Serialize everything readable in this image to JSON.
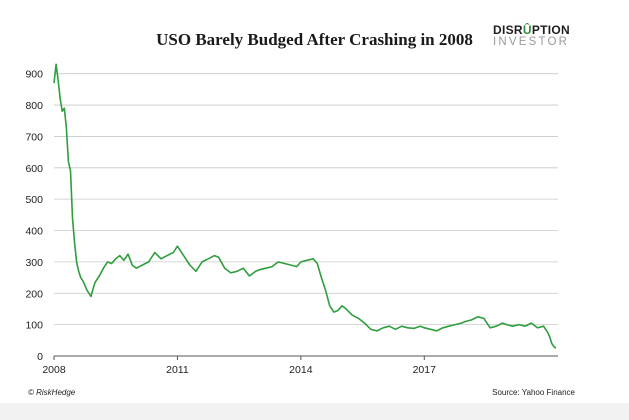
{
  "chart_data": {
    "type": "line",
    "title": "USO Barely Budged After Crashing in 2008",
    "xlabel": "",
    "ylabel": "",
    "x_tick_labels": [
      "2008",
      "2011",
      "2014",
      "2017"
    ],
    "x_ticks": [
      2008,
      2011,
      2014,
      2017
    ],
    "xlim": [
      2008,
      2020.25
    ],
    "y_ticks": [
      0,
      100,
      200,
      300,
      400,
      500,
      600,
      700,
      800,
      900
    ],
    "ylim": [
      0,
      950
    ],
    "grid": true,
    "line_color": "#2e9e3e",
    "series": [
      {
        "x": [
          2008.0,
          2008.05,
          2008.1,
          2008.15,
          2008.2,
          2008.25,
          2008.3,
          2008.35,
          2008.4,
          2008.45,
          2008.5,
          2008.55,
          2008.6,
          2008.65,
          2008.7,
          2008.75,
          2008.8,
          2008.85,
          2008.9,
          2008.95,
          2009.0,
          2009.1,
          2009.2,
          2009.3,
          2009.4,
          2009.5,
          2009.6,
          2009.7,
          2009.8,
          2009.9,
          2010.0,
          2010.15,
          2010.3,
          2010.45,
          2010.6,
          2010.75,
          2010.9,
          2011.0,
          2011.15,
          2011.3,
          2011.45,
          2011.6,
          2011.75,
          2011.9,
          2012.0,
          2012.15,
          2012.3,
          2012.45,
          2012.6,
          2012.75,
          2012.9,
          2013.0,
          2013.15,
          2013.3,
          2013.45,
          2013.6,
          2013.75,
          2013.9,
          2014.0,
          2014.15,
          2014.3,
          2014.4,
          2014.5,
          2014.6,
          2014.7,
          2014.8,
          2014.9,
          2015.0,
          2015.1,
          2015.25,
          2015.4,
          2015.55,
          2015.7,
          2015.85,
          2016.0,
          2016.15,
          2016.3,
          2016.45,
          2016.6,
          2016.75,
          2016.9,
          2017.0,
          2017.15,
          2017.3,
          2017.45,
          2017.6,
          2017.75,
          2017.9,
          2018.0,
          2018.15,
          2018.3,
          2018.45,
          2018.6,
          2018.75,
          2018.9,
          2019.0,
          2019.15,
          2019.3,
          2019.45,
          2019.6,
          2019.75,
          2019.9,
          2020.0,
          2020.05,
          2020.1,
          2020.15,
          2020.2
        ],
        "values": [
          870,
          930,
          880,
          820,
          780,
          790,
          730,
          620,
          590,
          440,
          360,
          300,
          270,
          250,
          240,
          225,
          210,
          200,
          190,
          215,
          235,
          255,
          280,
          300,
          295,
          310,
          320,
          305,
          325,
          290,
          280,
          290,
          300,
          330,
          310,
          320,
          330,
          350,
          320,
          290,
          270,
          300,
          310,
          320,
          315,
          280,
          265,
          270,
          280,
          255,
          270,
          275,
          280,
          285,
          300,
          295,
          290,
          285,
          300,
          305,
          310,
          295,
          250,
          210,
          160,
          140,
          145,
          160,
          150,
          130,
          120,
          105,
          85,
          80,
          90,
          95,
          85,
          95,
          90,
          88,
          95,
          90,
          85,
          80,
          90,
          95,
          100,
          105,
          110,
          115,
          125,
          120,
          90,
          95,
          105,
          100,
          95,
          100,
          95,
          105,
          90,
          95,
          75,
          60,
          40,
          30,
          25
        ]
      }
    ]
  },
  "logo": {
    "line1_before": "DISR",
    "line1_accent": "Û",
    "line1_after": "PTION",
    "line2": "INVESTOR"
  },
  "footer": {
    "left": "© RiskHedge",
    "right": "Source: Yahoo Finance"
  }
}
